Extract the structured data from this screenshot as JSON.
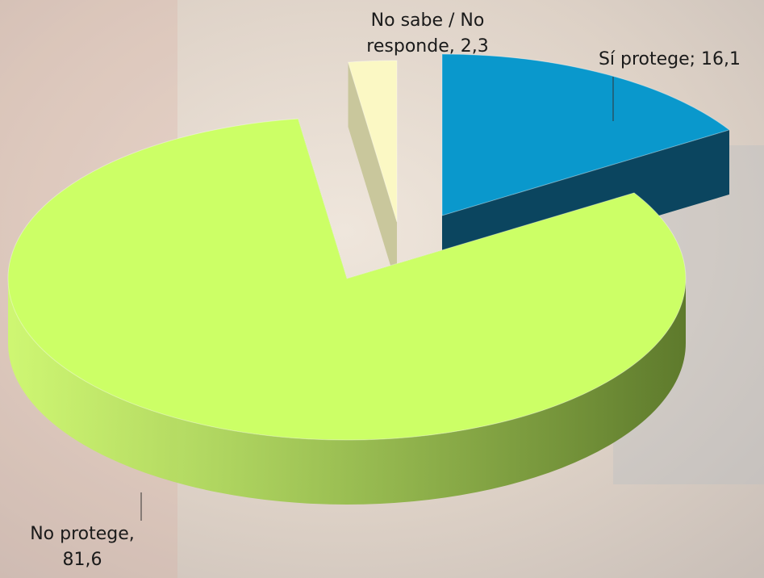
{
  "chart_data": {
    "type": "pie",
    "values": [
      16.1,
      81.6,
      2.3
    ],
    "value_labels": [
      "Sí protege; 16,1",
      "No protege, 81,6",
      "No sabe / No responde, 2,3"
    ],
    "colors": [
      "#0a98cc",
      "#ccff66",
      "#fbf8c4"
    ],
    "side_colors": [
      "#0b455f",
      "#5e7a2c",
      "#c9c79c"
    ]
  }
}
